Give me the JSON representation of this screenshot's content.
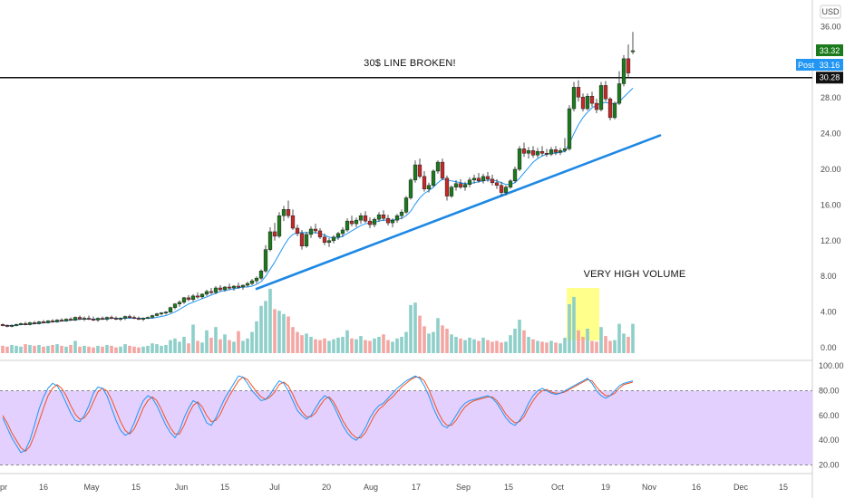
{
  "chart_data": {
    "type": "candlestick",
    "currency_label": "USD",
    "x_labels": [
      "pr",
      "16",
      "May",
      "15",
      "Jun",
      "15",
      "Jul",
      "20",
      "Aug",
      "17",
      "Sep",
      "15",
      "Oct",
      "19",
      "Nov",
      "16",
      "Dec",
      "15"
    ],
    "price_axis": {
      "ticks": [
        "36.00",
        "28.00",
        "24.00",
        "20.00",
        "16.00",
        "12.00",
        "8.00",
        "4.00",
        "0.00"
      ],
      "range": [
        0,
        36
      ]
    },
    "osc_axis": {
      "ticks": [
        "100.00",
        "80.00",
        "60.00",
        "40.00",
        "20.00"
      ],
      "range": [
        10,
        100
      ],
      "band": [
        20,
        80
      ]
    },
    "badges": {
      "last_price": "33.32",
      "post_label": "Post",
      "post_price": "33.16",
      "resistance_price": "30.28"
    },
    "colors": {
      "up": "#26a69a",
      "down": "#ef5350",
      "up_candle": "#1b7a1b",
      "down_candle": "#c62828",
      "ma": "#2196f3",
      "trend": "#1e88e5",
      "band": "#e3d0ff",
      "vol_up": "#8ecfc9",
      "vol_down": "#f4a6a3",
      "hl": "#ffff66",
      "k": "#2196f3",
      "d": "#f4511e"
    },
    "annotations": {
      "resistance_text": "30$ LINE BROKEN!",
      "volume_text": "VERY HIGH VOLUME"
    },
    "resistance_level": 30.28,
    "trendline": {
      "start": {
        "bar": 56,
        "price": 6.6
      },
      "end": {
        "bar": 145,
        "price": 23.8
      }
    },
    "volume_highlight": {
      "from_bar": 125,
      "to_bar": 131
    },
    "candles": [
      [
        2.6,
        2.7,
        2.4,
        2.5
      ],
      [
        2.5,
        2.6,
        2.3,
        2.4
      ],
      [
        2.4,
        2.6,
        2.3,
        2.5
      ],
      [
        2.5,
        2.7,
        2.4,
        2.6
      ],
      [
        2.6,
        2.8,
        2.5,
        2.7
      ],
      [
        2.7,
        2.9,
        2.5,
        2.6
      ],
      [
        2.6,
        2.9,
        2.5,
        2.8
      ],
      [
        2.8,
        3.0,
        2.6,
        2.7
      ],
      [
        2.7,
        3.0,
        2.6,
        2.9
      ],
      [
        2.9,
        3.1,
        2.7,
        2.8
      ],
      [
        2.8,
        3.1,
        2.7,
        3.0
      ],
      [
        3.0,
        3.2,
        2.8,
        2.9
      ],
      [
        2.9,
        3.2,
        2.8,
        3.1
      ],
      [
        3.1,
        3.3,
        2.9,
        3.0
      ],
      [
        3.0,
        3.3,
        2.9,
        3.2
      ],
      [
        3.2,
        3.4,
        3.0,
        3.1
      ],
      [
        3.1,
        3.5,
        3.0,
        3.4
      ],
      [
        3.4,
        3.6,
        3.1,
        3.2
      ],
      [
        3.2,
        3.5,
        3.0,
        3.3
      ],
      [
        3.3,
        3.6,
        3.1,
        3.2
      ],
      [
        3.2,
        3.5,
        3.0,
        3.1
      ],
      [
        3.1,
        3.4,
        2.9,
        3.3
      ],
      [
        3.3,
        3.5,
        3.1,
        3.2
      ],
      [
        3.2,
        3.5,
        3.0,
        3.4
      ],
      [
        3.4,
        3.6,
        3.2,
        3.3
      ],
      [
        3.3,
        3.5,
        3.1,
        3.2
      ],
      [
        3.2,
        3.4,
        3.0,
        3.3
      ],
      [
        3.3,
        3.6,
        3.1,
        3.5
      ],
      [
        3.5,
        3.7,
        3.3,
        3.4
      ],
      [
        3.4,
        3.6,
        3.2,
        3.3
      ],
      [
        3.3,
        3.5,
        3.1,
        3.2
      ],
      [
        3.2,
        3.4,
        3.0,
        3.3
      ],
      [
        3.3,
        3.5,
        3.2,
        3.4
      ],
      [
        3.4,
        3.7,
        3.3,
        3.6
      ],
      [
        3.6,
        3.9,
        3.5,
        3.8
      ],
      [
        3.8,
        4.0,
        3.6,
        3.9
      ],
      [
        3.9,
        4.1,
        3.7,
        4.0
      ],
      [
        4.0,
        4.6,
        3.9,
        4.5
      ],
      [
        4.5,
        5.0,
        4.3,
        4.9
      ],
      [
        4.9,
        5.3,
        4.6,
        5.1
      ],
      [
        5.1,
        5.7,
        4.9,
        5.6
      ],
      [
        5.6,
        5.9,
        5.2,
        5.4
      ],
      [
        5.4,
        6.0,
        5.2,
        5.8
      ],
      [
        5.8,
        6.2,
        5.5,
        5.7
      ],
      [
        5.7,
        6.1,
        5.5,
        6.0
      ],
      [
        6.0,
        6.5,
        5.8,
        6.3
      ],
      [
        6.3,
        6.7,
        6.0,
        6.2
      ],
      [
        6.2,
        6.9,
        6.0,
        6.7
      ],
      [
        6.7,
        7.0,
        6.3,
        6.5
      ],
      [
        6.5,
        6.9,
        6.3,
        6.8
      ],
      [
        6.8,
        7.2,
        6.5,
        6.7
      ],
      [
        6.7,
        7.0,
        6.4,
        6.9
      ],
      [
        6.9,
        7.3,
        6.6,
        6.8
      ],
      [
        6.8,
        7.1,
        6.5,
        7.0
      ],
      [
        7.0,
        7.4,
        6.8,
        7.2
      ],
      [
        7.2,
        7.7,
        7.0,
        7.5
      ],
      [
        7.5,
        8.0,
        7.2,
        7.8
      ],
      [
        7.8,
        8.8,
        7.6,
        8.6
      ],
      [
        8.6,
        11.5,
        8.4,
        11.0
      ],
      [
        11.0,
        13.5,
        10.8,
        13.0
      ],
      [
        13.0,
        14.0,
        12.0,
        12.5
      ],
      [
        12.5,
        15.2,
        12.3,
        14.8
      ],
      [
        14.8,
        15.9,
        14.2,
        15.5
      ],
      [
        15.5,
        16.5,
        14.5,
        14.8
      ],
      [
        14.8,
        15.5,
        13.2,
        13.4
      ],
      [
        13.4,
        13.8,
        12.5,
        12.8
      ],
      [
        12.8,
        13.2,
        11.0,
        11.4
      ],
      [
        11.4,
        13.0,
        11.2,
        12.7
      ],
      [
        12.7,
        13.6,
        12.3,
        13.3
      ],
      [
        13.3,
        13.9,
        12.8,
        13.1
      ],
      [
        13.1,
        13.4,
        12.2,
        12.4
      ],
      [
        12.4,
        12.8,
        11.5,
        11.8
      ],
      [
        11.8,
        12.3,
        11.3,
        12.0
      ],
      [
        12.0,
        12.6,
        11.7,
        12.4
      ],
      [
        12.4,
        13.0,
        12.1,
        12.8
      ],
      [
        12.8,
        13.5,
        12.4,
        13.2
      ],
      [
        13.2,
        14.5,
        13.0,
        14.2
      ],
      [
        14.2,
        14.8,
        13.6,
        13.9
      ],
      [
        13.9,
        14.6,
        13.5,
        14.3
      ],
      [
        14.3,
        15.1,
        13.9,
        14.8
      ],
      [
        14.8,
        15.3,
        14.0,
        14.2
      ],
      [
        14.2,
        14.6,
        13.4,
        13.8
      ],
      [
        13.8,
        14.6,
        13.5,
        14.4
      ],
      [
        14.4,
        15.2,
        14.1,
        14.9
      ],
      [
        14.9,
        15.4,
        14.2,
        14.5
      ],
      [
        14.5,
        14.9,
        13.7,
        14.0
      ],
      [
        14.0,
        14.5,
        13.5,
        14.3
      ],
      [
        14.3,
        15.0,
        14.0,
        14.8
      ],
      [
        14.8,
        15.5,
        14.4,
        15.2
      ],
      [
        15.2,
        17.0,
        15.0,
        16.8
      ],
      [
        16.8,
        19.0,
        16.6,
        18.8
      ],
      [
        18.8,
        21.0,
        18.5,
        20.5
      ],
      [
        20.5,
        21.2,
        19.0,
        19.2
      ],
      [
        19.2,
        19.8,
        17.5,
        17.8
      ],
      [
        17.8,
        18.5,
        17.4,
        18.2
      ],
      [
        18.2,
        20.0,
        18.0,
        19.8
      ],
      [
        19.8,
        21.0,
        19.5,
        20.8
      ],
      [
        20.8,
        21.2,
        18.8,
        19.0
      ],
      [
        19.0,
        19.3,
        16.5,
        17.0
      ],
      [
        17.0,
        18.2,
        16.8,
        18.0
      ],
      [
        18.0,
        18.8,
        17.6,
        18.4
      ],
      [
        18.4,
        18.9,
        17.8,
        18.0
      ],
      [
        18.0,
        18.6,
        17.6,
        18.3
      ],
      [
        18.3,
        19.1,
        18.0,
        18.8
      ],
      [
        18.8,
        19.4,
        18.4,
        19.0
      ],
      [
        19.0,
        19.6,
        18.5,
        18.7
      ],
      [
        18.7,
        19.5,
        18.4,
        19.2
      ],
      [
        19.2,
        19.7,
        18.6,
        18.9
      ],
      [
        18.9,
        19.4,
        18.2,
        18.5
      ],
      [
        18.5,
        18.9,
        17.8,
        18.2
      ],
      [
        18.2,
        18.6,
        17.0,
        17.4
      ],
      [
        17.4,
        18.2,
        17.1,
        18.0
      ],
      [
        18.0,
        18.9,
        17.8,
        18.7
      ],
      [
        18.7,
        20.3,
        18.5,
        20.0
      ],
      [
        20.0,
        22.6,
        19.8,
        22.3
      ],
      [
        22.3,
        23.0,
        21.4,
        21.8
      ],
      [
        21.8,
        22.5,
        21.2,
        22.1
      ],
      [
        22.1,
        22.6,
        21.3,
        21.6
      ],
      [
        21.6,
        22.4,
        21.3,
        22.0
      ],
      [
        22.0,
        22.6,
        21.5,
        21.8
      ],
      [
        21.8,
        22.3,
        21.4,
        21.7
      ],
      [
        21.7,
        22.5,
        21.5,
        22.2
      ],
      [
        22.2,
        22.6,
        21.6,
        21.9
      ],
      [
        21.9,
        22.4,
        21.6,
        22.1
      ],
      [
        22.1,
        23.5,
        21.9,
        22.3
      ],
      [
        22.3,
        27.2,
        22.1,
        26.8
      ],
      [
        26.8,
        29.8,
        26.5,
        29.2
      ],
      [
        29.2,
        30.0,
        27.6,
        28.1
      ],
      [
        28.1,
        28.5,
        26.5,
        26.8
      ],
      [
        26.8,
        28.5,
        26.6,
        28.2
      ],
      [
        28.2,
        28.7,
        27.0,
        27.4
      ],
      [
        27.4,
        27.9,
        26.3,
        26.7
      ],
      [
        26.7,
        29.8,
        26.5,
        29.4
      ],
      [
        29.4,
        29.9,
        27.6,
        27.9
      ],
      [
        27.9,
        28.1,
        25.5,
        25.8
      ],
      [
        25.8,
        27.6,
        25.6,
        27.4
      ],
      [
        27.4,
        31.0,
        27.2,
        29.6
      ],
      [
        29.6,
        32.8,
        29.3,
        32.4
      ],
      [
        32.4,
        34.0,
        30.2,
        30.8
      ],
      [
        33.2,
        35.4,
        32.9,
        33.3
      ]
    ],
    "ma_values": [
      2.5,
      2.5,
      2.5,
      2.5,
      2.6,
      2.6,
      2.6,
      2.7,
      2.7,
      2.8,
      2.8,
      2.9,
      2.9,
      3.0,
      3.0,
      3.1,
      3.1,
      3.2,
      3.2,
      3.2,
      3.2,
      3.2,
      3.2,
      3.2,
      3.3,
      3.3,
      3.3,
      3.3,
      3.3,
      3.3,
      3.3,
      3.3,
      3.3,
      3.3,
      3.4,
      3.5,
      3.6,
      3.8,
      4.0,
      4.3,
      4.6,
      4.9,
      5.1,
      5.3,
      5.5,
      5.7,
      5.9,
      6.1,
      6.3,
      6.4,
      6.5,
      6.6,
      6.7,
      6.8,
      6.8,
      6.9,
      7.1,
      7.4,
      8.0,
      8.8,
      9.6,
      10.5,
      11.4,
      12.2,
      12.7,
      12.9,
      12.9,
      12.9,
      12.9,
      12.9,
      12.8,
      12.6,
      12.4,
      12.3,
      12.3,
      12.5,
      12.8,
      13.1,
      13.4,
      13.7,
      13.9,
      14.0,
      14.1,
      14.2,
      14.3,
      14.3,
      14.3,
      14.4,
      14.5,
      14.8,
      15.3,
      16.1,
      16.8,
      17.3,
      17.6,
      18.0,
      18.5,
      18.9,
      18.8,
      18.7,
      18.6,
      18.5,
      18.4,
      18.4,
      18.5,
      18.6,
      18.7,
      18.8,
      18.8,
      18.7,
      18.5,
      18.3,
      18.3,
      18.5,
      19.0,
      19.6,
      20.2,
      20.8,
      21.2,
      21.5,
      21.7,
      21.8,
      21.8,
      21.9,
      22.0,
      22.9,
      24.0,
      25.0,
      25.8,
      26.4,
      26.9,
      27.2,
      27.4,
      27.5,
      27.4,
      27.3,
      27.6,
      28.1,
      28.6,
      29.1
    ],
    "volume": [
      0.9,
      0.8,
      1.0,
      0.9,
      0.8,
      1.1,
      1.0,
      0.9,
      1.0,
      0.8,
      0.9,
      1.0,
      1.1,
      0.9,
      0.8,
      1.0,
      1.5,
      0.8,
      0.9,
      0.8,
      0.7,
      0.9,
      0.8,
      1.0,
      0.9,
      0.7,
      0.8,
      1.1,
      0.9,
      0.8,
      0.7,
      0.8,
      0.9,
      1.2,
      1.1,
      0.9,
      1.0,
      1.6,
      1.8,
      1.4,
      2.0,
      1.2,
      3.5,
      1.5,
      1.3,
      2.8,
      1.9,
      3.2,
      1.7,
      2.3,
      1.6,
      1.4,
      2.7,
      1.5,
      1.8,
      2.6,
      3.9,
      5.8,
      6.4,
      7.9,
      5.4,
      5.2,
      4.8,
      4.5,
      3.2,
      2.6,
      2.2,
      2.4,
      2.0,
      1.7,
      1.6,
      1.8,
      1.5,
      1.7,
      1.9,
      2.0,
      2.8,
      1.8,
      1.7,
      2.1,
      1.6,
      1.5,
      1.8,
      2.0,
      2.3,
      1.6,
      1.4,
      1.8,
      2.0,
      2.6,
      5.9,
      6.2,
      4.6,
      3.3,
      2.4,
      2.6,
      4.3,
      3.4,
      3.0,
      2.3,
      2.0,
      1.8,
      1.6,
      1.9,
      1.7,
      1.5,
      1.9,
      1.6,
      1.4,
      1.5,
      1.3,
      1.4,
      2.2,
      3.0,
      4.1,
      2.8,
      2.0,
      1.7,
      1.5,
      1.4,
      1.3,
      1.5,
      1.3,
      1.2,
      1.9,
      6.0,
      6.9,
      2.8,
      2.0,
      3.0,
      1.5,
      1.4,
      3.2,
      2.1,
      1.5,
      1.6,
      3.6,
      2.4,
      2.0,
      3.6
    ],
    "stoch_k": [
      58,
      50,
      42,
      36,
      30,
      32,
      40,
      52,
      65,
      75,
      82,
      86,
      84,
      78,
      70,
      62,
      56,
      55,
      60,
      68,
      78,
      83,
      82,
      76,
      66,
      56,
      48,
      44,
      46,
      54,
      64,
      72,
      76,
      74,
      68,
      60,
      52,
      46,
      42,
      48,
      58,
      66,
      72,
      70,
      62,
      54,
      52,
      58,
      66,
      74,
      80,
      86,
      92,
      91,
      86,
      80,
      76,
      72,
      73,
      77,
      83,
      88,
      86,
      80,
      72,
      64,
      60,
      57,
      60,
      66,
      72,
      76,
      74,
      68,
      60,
      52,
      46,
      42,
      40,
      44,
      50,
      58,
      64,
      68,
      70,
      74,
      78,
      82,
      85,
      88,
      90,
      92,
      90,
      84,
      76,
      66,
      58,
      52,
      50,
      54,
      60,
      66,
      70,
      72,
      73,
      74,
      75,
      76,
      74,
      70,
      64,
      58,
      54,
      52,
      56,
      62,
      70,
      76,
      80,
      82,
      80,
      78,
      77,
      78,
      80,
      82,
      84,
      86,
      88,
      90,
      86,
      80,
      76,
      74,
      76,
      80,
      84,
      86,
      87,
      88
    ],
    "stoch_d": [
      60,
      54,
      46,
      40,
      34,
      31,
      35,
      44,
      55,
      66,
      76,
      82,
      85,
      82,
      76,
      68,
      61,
      57,
      58,
      63,
      71,
      79,
      82,
      80,
      73,
      64,
      55,
      48,
      45,
      49,
      57,
      66,
      72,
      75,
      72,
      65,
      57,
      50,
      45,
      45,
      52,
      61,
      68,
      71,
      67,
      60,
      55,
      56,
      61,
      69,
      76,
      82,
      88,
      91,
      89,
      84,
      79,
      75,
      73,
      75,
      79,
      85,
      87,
      84,
      77,
      69,
      63,
      59,
      59,
      62,
      68,
      73,
      75,
      71,
      64,
      56,
      50,
      45,
      42,
      42,
      46,
      53,
      60,
      65,
      68,
      72,
      75,
      79,
      83,
      86,
      89,
      91,
      91,
      88,
      81,
      72,
      63,
      56,
      52,
      52,
      56,
      62,
      67,
      70,
      72,
      73,
      74,
      75,
      75,
      72,
      67,
      61,
      57,
      54,
      55,
      59,
      66,
      72,
      77,
      80,
      81,
      79,
      78,
      78,
      79,
      81,
      83,
      85,
      87,
      89,
      88,
      83,
      79,
      76,
      76,
      78,
      82,
      85,
      86,
      87
    ]
  }
}
